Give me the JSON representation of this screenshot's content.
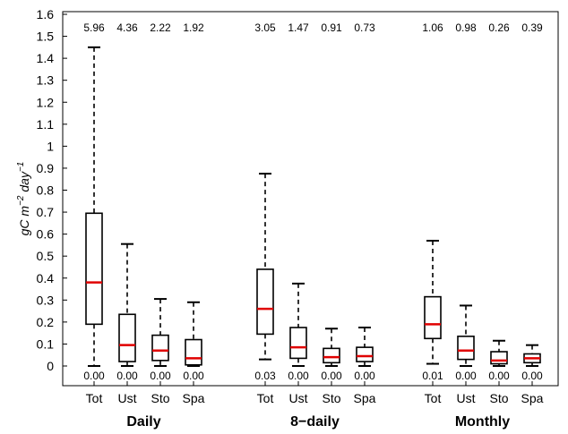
{
  "chart_data": {
    "type": "boxplot",
    "ylabel": {
      "base": "gC m",
      "sup1": "−2",
      "mid": " day",
      "sup2": "−1"
    },
    "ylim": [
      0,
      1.6
    ],
    "yticks": [
      "0",
      "0.1",
      "0.2",
      "0.3",
      "0.4",
      "0.5",
      "0.6",
      "0.7",
      "0.8",
      "0.9",
      "1",
      "1.1",
      "1.2",
      "1.3",
      "1.4",
      "1.5",
      "1.6"
    ],
    "grid": false,
    "colors": {
      "box": "#000000",
      "median": "#e00000"
    },
    "groups": [
      {
        "label": "Daily",
        "boxes": [
          {
            "category": "Tot",
            "whisker_low": 0.0,
            "q1": 0.19,
            "median": 0.38,
            "q3": 0.695,
            "whisker_high": 1.45,
            "max_label": "5.96",
            "min_label": "0.00"
          },
          {
            "category": "Ust",
            "whisker_low": 0.0,
            "q1": 0.02,
            "median": 0.095,
            "q3": 0.235,
            "whisker_high": 0.555,
            "max_label": "4.36",
            "min_label": "0.00"
          },
          {
            "category": "Sto",
            "whisker_low": 0.0,
            "q1": 0.025,
            "median": 0.07,
            "q3": 0.14,
            "whisker_high": 0.305,
            "max_label": "2.22",
            "min_label": "0.00"
          },
          {
            "category": "Spa",
            "whisker_low": 0.0,
            "q1": 0.005,
            "median": 0.035,
            "q3": 0.12,
            "whisker_high": 0.29,
            "max_label": "1.92",
            "min_label": "0.00"
          }
        ]
      },
      {
        "label": "8−daily",
        "boxes": [
          {
            "category": "Tot",
            "whisker_low": 0.03,
            "q1": 0.145,
            "median": 0.26,
            "q3": 0.44,
            "whisker_high": 0.875,
            "max_label": "3.05",
            "min_label": "0.03"
          },
          {
            "category": "Ust",
            "whisker_low": 0.0,
            "q1": 0.035,
            "median": 0.085,
            "q3": 0.175,
            "whisker_high": 0.375,
            "max_label": "1.47",
            "min_label": "0.00"
          },
          {
            "category": "Sto",
            "whisker_low": 0.0,
            "q1": 0.015,
            "median": 0.04,
            "q3": 0.08,
            "whisker_high": 0.17,
            "max_label": "0.91",
            "min_label": "0.00"
          },
          {
            "category": "Spa",
            "whisker_low": 0.0,
            "q1": 0.02,
            "median": 0.045,
            "q3": 0.085,
            "whisker_high": 0.175,
            "max_label": "0.73",
            "min_label": "0.00"
          }
        ]
      },
      {
        "label": "Monthly",
        "boxes": [
          {
            "category": "Tot",
            "whisker_low": 0.01,
            "q1": 0.125,
            "median": 0.19,
            "q3": 0.315,
            "whisker_high": 0.57,
            "max_label": "1.06",
            "min_label": "0.01"
          },
          {
            "category": "Ust",
            "whisker_low": 0.0,
            "q1": 0.03,
            "median": 0.07,
            "q3": 0.135,
            "whisker_high": 0.275,
            "max_label": "0.98",
            "min_label": "0.00"
          },
          {
            "category": "Sto",
            "whisker_low": 0.0,
            "q1": 0.01,
            "median": 0.025,
            "q3": 0.065,
            "whisker_high": 0.115,
            "max_label": "0.26",
            "min_label": "0.00"
          },
          {
            "category": "Spa",
            "whisker_low": 0.0,
            "q1": 0.015,
            "median": 0.035,
            "q3": 0.055,
            "whisker_high": 0.095,
            "max_label": "0.39",
            "min_label": "0.00"
          }
        ]
      }
    ]
  }
}
